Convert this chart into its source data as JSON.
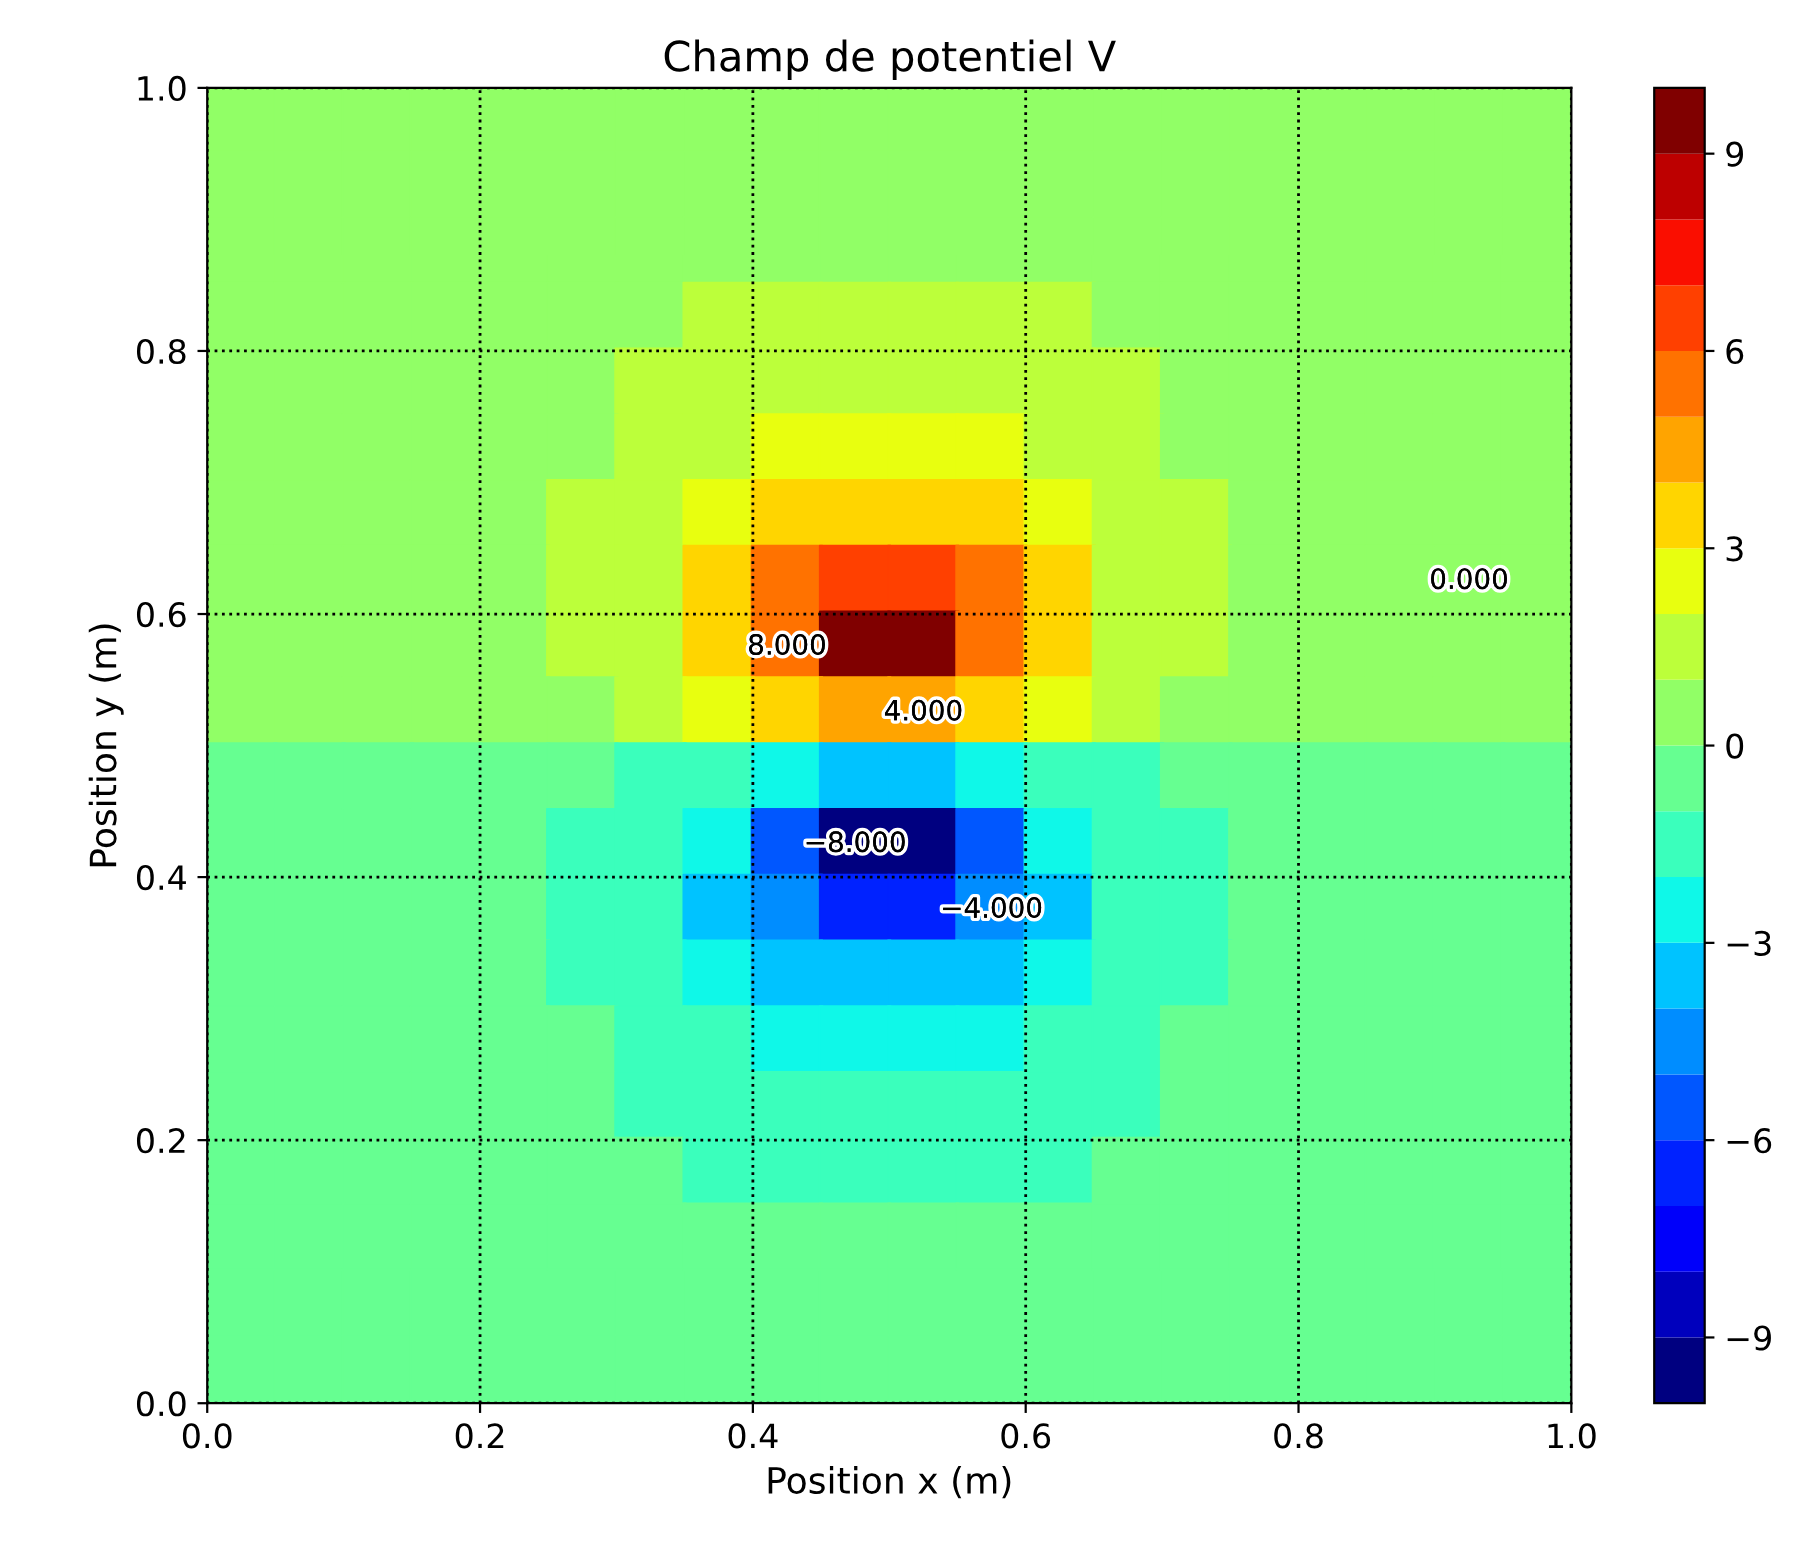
{
  "chart_data": {
    "type": "scatter",
    "marker": "square",
    "title": "Champ de potentiel V",
    "xlabel": "Position x (m)",
    "ylabel": "Position y (m)",
    "x": [
      0.025,
      0.075,
      0.125,
      0.175,
      0.225,
      0.275,
      0.325,
      0.375,
      0.425,
      0.475,
      0.525,
      0.575,
      0.625,
      0.675,
      0.725,
      0.775,
      0.825,
      0.875,
      0.925,
      0.975
    ],
    "xlim": [
      0,
      1
    ],
    "ylim": [
      0,
      1
    ],
    "xticks": [
      {
        "value": 0,
        "label": "0.0"
      },
      {
        "value": 0.2,
        "label": "0.2"
      },
      {
        "value": 0.4,
        "label": "0.4"
      },
      {
        "value": 0.6,
        "label": "0.6"
      },
      {
        "value": 0.8,
        "label": "0.8"
      },
      {
        "value": 1,
        "label": "1.0"
      }
    ],
    "yticks": [
      {
        "value": 0,
        "label": "0.0"
      },
      {
        "value": 0.2,
        "label": "0.2"
      },
      {
        "value": 0.4,
        "label": "0.4"
      },
      {
        "value": 0.6,
        "label": "0.6"
      },
      {
        "value": 0.8,
        "label": "0.8"
      },
      {
        "value": 1,
        "label": "1.0"
      }
    ],
    "clim": [
      -10,
      10
    ],
    "cticks": [
      {
        "value": -9,
        "label": "−9"
      },
      {
        "value": -6,
        "label": "−6"
      },
      {
        "value": -3,
        "label": "−3"
      },
      0,
      3,
      6,
      9
    ],
    "grid": true,
    "series": [
      {
        "colors": [
          "#91ff66",
          "#91ff66",
          "#91ff66",
          "#91ff66",
          "#91ff66",
          "#91ff66",
          "#91ff66",
          "#91ff66",
          "#91ff66",
          "#91ff66",
          "#91ff66",
          "#91ff66",
          "#91ff66",
          "#91ff66",
          "#91ff66",
          "#91ff66",
          "#91ff66",
          "#91ff66",
          "#91ff66",
          "#91ff66"
        ],
        "values": [
          0.975,
          0.975,
          0.975,
          0.975,
          0.975,
          0.975,
          0.975,
          0.975,
          0.975,
          0.975,
          0.975,
          0.975,
          0.975,
          0.975,
          0.975,
          0.975,
          0.975,
          0.975,
          0.975,
          0.975
        ],
        "cvalues": [
          0.5,
          0.5,
          0.5,
          0.5,
          0.5,
          0.5,
          0.5,
          0.5,
          0.5,
          0.5,
          0.5,
          0.5,
          0.5,
          0.5,
          0.5,
          0.5,
          0.5,
          0.5,
          0.5,
          0.5
        ]
      },
      {
        "colors": [
          "#91ff66",
          "#91ff66",
          "#91ff66",
          "#91ff66",
          "#91ff66",
          "#91ff66",
          "#91ff66",
          "#91ff66",
          "#91ff66",
          "#91ff66",
          "#91ff66",
          "#91ff66",
          "#91ff66",
          "#91ff66",
          "#91ff66",
          "#91ff66",
          "#91ff66",
          "#91ff66",
          "#91ff66",
          "#91ff66"
        ],
        "values": [
          0.925,
          0.925,
          0.925,
          0.925,
          0.925,
          0.925,
          0.925,
          0.925,
          0.925,
          0.925,
          0.925,
          0.925,
          0.925,
          0.925,
          0.925,
          0.925,
          0.925,
          0.925,
          0.925,
          0.925
        ],
        "cvalues": [
          0.5,
          0.5,
          0.5,
          0.5,
          0.5,
          0.5,
          0.5,
          0.5,
          0.5,
          0.5,
          0.5,
          0.5,
          0.5,
          0.5,
          0.5,
          0.5,
          0.5,
          0.5,
          0.5,
          0.5
        ]
      },
      {
        "colors": [
          "#91ff66",
          "#91ff66",
          "#91ff66",
          "#91ff66",
          "#91ff66",
          "#91ff66",
          "#91ff66",
          "#91ff66",
          "#91ff66",
          "#91ff66",
          "#91ff66",
          "#91ff66",
          "#91ff66",
          "#91ff66",
          "#91ff66",
          "#91ff66",
          "#91ff66",
          "#91ff66",
          "#91ff66",
          "#91ff66"
        ],
        "values": [
          0.875,
          0.875,
          0.875,
          0.875,
          0.875,
          0.875,
          0.875,
          0.875,
          0.875,
          0.875,
          0.875,
          0.875,
          0.875,
          0.875,
          0.875,
          0.875,
          0.875,
          0.875,
          0.875,
          0.875
        ],
        "cvalues": [
          0.5,
          0.5,
          0.5,
          0.5,
          0.5,
          0.5,
          0.5,
          0.5,
          0.5,
          0.5,
          0.5,
          0.5,
          0.5,
          0.5,
          0.5,
          0.5,
          0.5,
          0.5,
          0.5,
          0.5
        ]
      },
      {
        "colors": [
          "#91ff66",
          "#91ff66",
          "#91ff66",
          "#91ff66",
          "#91ff66",
          "#91ff66",
          "#91ff66",
          "#bcff3a",
          "#bcff3a",
          "#bcff3a",
          "#bcff3a",
          "#bcff3a",
          "#bcff3a",
          "#91ff66",
          "#91ff66",
          "#91ff66",
          "#91ff66",
          "#91ff66",
          "#91ff66",
          "#91ff66"
        ],
        "values": [
          0.825,
          0.825,
          0.825,
          0.825,
          0.825,
          0.825,
          0.825,
          0.825,
          0.825,
          0.825,
          0.825,
          0.825,
          0.825,
          0.825,
          0.825,
          0.825,
          0.825,
          0.825,
          0.825,
          0.825
        ],
        "cvalues": [
          0.5,
          0.5,
          0.5,
          0.5,
          0.5,
          0.5,
          0.5,
          1.05,
          1.2,
          1.3,
          1.3,
          1.2,
          1.05,
          0.5,
          0.5,
          0.5,
          0.5,
          0.5,
          0.5,
          0.5
        ]
      },
      {
        "colors": [
          "#91ff66",
          "#91ff66",
          "#91ff66",
          "#91ff66",
          "#91ff66",
          "#91ff66",
          "#bcff3a",
          "#bcff3a",
          "#bcff3a",
          "#bcff3a",
          "#bcff3a",
          "#bcff3a",
          "#bcff3a",
          "#bcff3a",
          "#91ff66",
          "#91ff66",
          "#91ff66",
          "#91ff66",
          "#91ff66",
          "#91ff66"
        ],
        "values": [
          0.775,
          0.775,
          0.775,
          0.775,
          0.775,
          0.775,
          0.775,
          0.775,
          0.775,
          0.775,
          0.775,
          0.775,
          0.775,
          0.775,
          0.775,
          0.775,
          0.775,
          0.775,
          0.775,
          0.775
        ],
        "cvalues": [
          0.5,
          0.5,
          0.5,
          0.5,
          0.5,
          0.5,
          1.1,
          1.4,
          1.7,
          1.9,
          1.9,
          1.7,
          1.4,
          1.1,
          0.5,
          0.5,
          0.5,
          0.5,
          0.5,
          0.5
        ]
      },
      {
        "colors": [
          "#91ff66",
          "#91ff66",
          "#91ff66",
          "#91ff66",
          "#91ff66",
          "#91ff66",
          "#bcff3a",
          "#bcff3a",
          "#e8ff0f",
          "#e8ff0f",
          "#e8ff0f",
          "#e8ff0f",
          "#bcff3a",
          "#bcff3a",
          "#91ff66",
          "#91ff66",
          "#91ff66",
          "#91ff66",
          "#91ff66",
          "#91ff66"
        ],
        "values": [
          0.725,
          0.725,
          0.725,
          0.725,
          0.725,
          0.725,
          0.725,
          0.725,
          0.725,
          0.725,
          0.725,
          0.725,
          0.725,
          0.725,
          0.725,
          0.725,
          0.725,
          0.725,
          0.725,
          0.725
        ],
        "cvalues": [
          0.5,
          0.5,
          0.5,
          0.5,
          0.5,
          0.8,
          1.3,
          1.9,
          2.4,
          2.7,
          2.7,
          2.4,
          1.9,
          1.3,
          0.8,
          0.5,
          0.5,
          0.5,
          0.5,
          0.5
        ]
      },
      {
        "colors": [
          "#91ff66",
          "#91ff66",
          "#91ff66",
          "#91ff66",
          "#91ff66",
          "#bcff3a",
          "#bcff3a",
          "#e8ff0f",
          "#ffd500",
          "#ffd500",
          "#ffd500",
          "#ffd500",
          "#e8ff0f",
          "#bcff3a",
          "#bcff3a",
          "#91ff66",
          "#91ff66",
          "#91ff66",
          "#91ff66",
          "#91ff66"
        ],
        "values": [
          0.675,
          0.675,
          0.675,
          0.675,
          0.675,
          0.675,
          0.675,
          0.675,
          0.675,
          0.675,
          0.675,
          0.675,
          0.675,
          0.675,
          0.675,
          0.675,
          0.675,
          0.675,
          0.675,
          0.675
        ],
        "cvalues": [
          0.5,
          0.5,
          0.5,
          0.5,
          0.8,
          1.1,
          1.6,
          2.5,
          3.3,
          3.8,
          3.8,
          3.3,
          2.5,
          1.6,
          1.1,
          0.8,
          0.5,
          0.5,
          0.5,
          0.5
        ]
      },
      {
        "colors": [
          "#91ff66",
          "#91ff66",
          "#91ff66",
          "#91ff66",
          "#91ff66",
          "#bcff3a",
          "#bcff3a",
          "#ffd500",
          "#ff7200",
          "#ff4000",
          "#ff4000",
          "#ff7200",
          "#ffd500",
          "#bcff3a",
          "#bcff3a",
          "#91ff66",
          "#91ff66",
          "#91ff66",
          "#91ff66",
          "#91ff66"
        ],
        "values": [
          0.625,
          0.625,
          0.625,
          0.625,
          0.625,
          0.625,
          0.625,
          0.625,
          0.625,
          0.625,
          0.625,
          0.625,
          0.625,
          0.625,
          0.625,
          0.625,
          0.625,
          0.625,
          0.625,
          0.625
        ],
        "cvalues": [
          0.5,
          0.5,
          0.5,
          0.5,
          0.8,
          1.2,
          1.8,
          3.2,
          5,
          6.5,
          6.5,
          5,
          3.2,
          1.8,
          1.2,
          0.8,
          0.5,
          0.5,
          0.5,
          0.5
        ]
      },
      {
        "colors": [
          "#91ff66",
          "#91ff66",
          "#91ff66",
          "#91ff66",
          "#91ff66",
          "#bcff3a",
          "#bcff3a",
          "#ffd500",
          "#ff7200",
          "#800000",
          "#800000",
          "#ff7200",
          "#ffd500",
          "#bcff3a",
          "#bcff3a",
          "#91ff66",
          "#91ff66",
          "#91ff66",
          "#91ff66",
          "#91ff66"
        ],
        "values": [
          0.575,
          0.575,
          0.575,
          0.575,
          0.575,
          0.575,
          0.575,
          0.575,
          0.575,
          0.575,
          0.575,
          0.575,
          0.575,
          0.575,
          0.575,
          0.575,
          0.575,
          0.575,
          0.575,
          0.575
        ],
        "cvalues": [
          0.5,
          0.5,
          0.5,
          0.5,
          0.8,
          1.1,
          1.8,
          3,
          5.5,
          9.5,
          9.5,
          5.5,
          3,
          1.8,
          1.1,
          0.8,
          0.5,
          0.5,
          0.5,
          0.5
        ]
      },
      {
        "colors": [
          "#91ff66",
          "#91ff66",
          "#91ff66",
          "#91ff66",
          "#91ff66",
          "#91ff66",
          "#bcff3a",
          "#e8ff0f",
          "#ffd500",
          "#ffa400",
          "#ffa400",
          "#ffd500",
          "#e8ff0f",
          "#bcff3a",
          "#91ff66",
          "#91ff66",
          "#91ff66",
          "#91ff66",
          "#91ff66",
          "#91ff66"
        ],
        "values": [
          0.525,
          0.525,
          0.525,
          0.525,
          0.525,
          0.525,
          0.525,
          0.525,
          0.525,
          0.525,
          0.525,
          0.525,
          0.525,
          0.525,
          0.525,
          0.525,
          0.525,
          0.525,
          0.525,
          0.525
        ],
        "cvalues": [
          0.5,
          0.5,
          0.5,
          0.5,
          0.5,
          0.8,
          1.2,
          2,
          3,
          4,
          4,
          3,
          2,
          1.2,
          0.8,
          0.5,
          0.5,
          0.5,
          0.5,
          0.5
        ]
      },
      {
        "colors": [
          "#66ff91",
          "#66ff91",
          "#66ff91",
          "#66ff91",
          "#66ff91",
          "#66ff91",
          "#3affbc",
          "#3affbc",
          "#0ff8e8",
          "#00c3ff",
          "#00c3ff",
          "#0ff8e8",
          "#3affbc",
          "#3affbc",
          "#66ff91",
          "#66ff91",
          "#66ff91",
          "#66ff91",
          "#66ff91",
          "#66ff91"
        ],
        "values": [
          0.475,
          0.475,
          0.475,
          0.475,
          0.475,
          0.475,
          0.475,
          0.475,
          0.475,
          0.475,
          0.475,
          0.475,
          0.475,
          0.475,
          0.475,
          0.475,
          0.475,
          0.475,
          0.475,
          0.475
        ],
        "cvalues": [
          -0.5,
          -0.5,
          -0.5,
          -0.5,
          -0.5,
          -0.8,
          -1.2,
          -2,
          -3,
          -4,
          -4,
          -3,
          -2,
          -1.2,
          -0.8,
          -0.5,
          -0.5,
          -0.5,
          -0.5,
          -0.5
        ]
      },
      {
        "colors": [
          "#66ff91",
          "#66ff91",
          "#66ff91",
          "#66ff91",
          "#66ff91",
          "#3affbc",
          "#3affbc",
          "#0ff8e8",
          "#0057ff",
          "#000080",
          "#000080",
          "#0057ff",
          "#0ff8e8",
          "#3affbc",
          "#3affbc",
          "#66ff91",
          "#66ff91",
          "#66ff91",
          "#66ff91",
          "#66ff91"
        ],
        "values": [
          0.425,
          0.425,
          0.425,
          0.425,
          0.425,
          0.425,
          0.425,
          0.425,
          0.425,
          0.425,
          0.425,
          0.425,
          0.425,
          0.425,
          0.425,
          0.425,
          0.425,
          0.425,
          0.425,
          0.425
        ],
        "cvalues": [
          -0.5,
          -0.5,
          -0.5,
          -0.5,
          -0.8,
          -1.1,
          -1.8,
          -3,
          -5.5,
          -9.5,
          -9.5,
          -5.5,
          -3,
          -1.8,
          -1.1,
          -0.8,
          -0.5,
          -0.5,
          -0.5,
          -0.5
        ]
      },
      {
        "colors": [
          "#66ff91",
          "#66ff91",
          "#66ff91",
          "#66ff91",
          "#66ff91",
          "#3affbc",
          "#3affbc",
          "#00c3ff",
          "#008dff",
          "#0022ff",
          "#0022ff",
          "#008dff",
          "#00c3ff",
          "#3affbc",
          "#3affbc",
          "#66ff91",
          "#66ff91",
          "#66ff91",
          "#66ff91",
          "#66ff91"
        ],
        "values": [
          0.375,
          0.375,
          0.375,
          0.375,
          0.375,
          0.375,
          0.375,
          0.375,
          0.375,
          0.375,
          0.375,
          0.375,
          0.375,
          0.375,
          0.375,
          0.375,
          0.375,
          0.375,
          0.375,
          0.375
        ],
        "cvalues": [
          -0.5,
          -0.5,
          -0.5,
          -0.5,
          -0.8,
          -1.2,
          -1.8,
          -3.2,
          -5,
          -6.5,
          -6.5,
          -5,
          -3.2,
          -1.8,
          -1.2,
          -0.8,
          -0.5,
          -0.5,
          -0.5,
          -0.5
        ]
      },
      {
        "colors": [
          "#66ff91",
          "#66ff91",
          "#66ff91",
          "#66ff91",
          "#66ff91",
          "#3affbc",
          "#3affbc",
          "#0ff8e8",
          "#00c3ff",
          "#00c3ff",
          "#00c3ff",
          "#00c3ff",
          "#0ff8e8",
          "#3affbc",
          "#3affbc",
          "#66ff91",
          "#66ff91",
          "#66ff91",
          "#66ff91",
          "#66ff91"
        ],
        "values": [
          0.325,
          0.325,
          0.325,
          0.325,
          0.325,
          0.325,
          0.325,
          0.325,
          0.325,
          0.325,
          0.325,
          0.325,
          0.325,
          0.325,
          0.325,
          0.325,
          0.325,
          0.325,
          0.325,
          0.325
        ],
        "cvalues": [
          -0.5,
          -0.5,
          -0.5,
          -0.5,
          -0.8,
          -1.1,
          -1.6,
          -2.5,
          -3.3,
          -3.8,
          -3.8,
          -3.3,
          -2.5,
          -1.6,
          -1.1,
          -0.8,
          -0.5,
          -0.5,
          -0.5,
          -0.5
        ]
      },
      {
        "colors": [
          "#66ff91",
          "#66ff91",
          "#66ff91",
          "#66ff91",
          "#66ff91",
          "#66ff91",
          "#3affbc",
          "#3affbc",
          "#0ff8e8",
          "#0ff8e8",
          "#0ff8e8",
          "#0ff8e8",
          "#3affbc",
          "#3affbc",
          "#66ff91",
          "#66ff91",
          "#66ff91",
          "#66ff91",
          "#66ff91",
          "#66ff91"
        ],
        "values": [
          0.275,
          0.275,
          0.275,
          0.275,
          0.275,
          0.275,
          0.275,
          0.275,
          0.275,
          0.275,
          0.275,
          0.275,
          0.275,
          0.275,
          0.275,
          0.275,
          0.275,
          0.275,
          0.275,
          0.275
        ],
        "cvalues": [
          -0.5,
          -0.5,
          -0.5,
          -0.5,
          -0.5,
          -0.8,
          -1.3,
          -1.9,
          -2.4,
          -2.7,
          -2.7,
          -2.4,
          -1.9,
          -1.3,
          -0.8,
          -0.5,
          -0.5,
          -0.5,
          -0.5,
          -0.5
        ]
      },
      {
        "colors": [
          "#66ff91",
          "#66ff91",
          "#66ff91",
          "#66ff91",
          "#66ff91",
          "#66ff91",
          "#3affbc",
          "#3affbc",
          "#3affbc",
          "#3affbc",
          "#3affbc",
          "#3affbc",
          "#3affbc",
          "#3affbc",
          "#66ff91",
          "#66ff91",
          "#66ff91",
          "#66ff91",
          "#66ff91",
          "#66ff91"
        ],
        "values": [
          0.225,
          0.225,
          0.225,
          0.225,
          0.225,
          0.225,
          0.225,
          0.225,
          0.225,
          0.225,
          0.225,
          0.225,
          0.225,
          0.225,
          0.225,
          0.225,
          0.225,
          0.225,
          0.225,
          0.225
        ],
        "cvalues": [
          -0.5,
          -0.5,
          -0.5,
          -0.5,
          -0.5,
          -0.5,
          -1.1,
          -1.4,
          -1.7,
          -1.9,
          -1.9,
          -1.7,
          -1.4,
          -1.1,
          -0.5,
          -0.5,
          -0.5,
          -0.5,
          -0.5,
          -0.5
        ]
      },
      {
        "colors": [
          "#66ff91",
          "#66ff91",
          "#66ff91",
          "#66ff91",
          "#66ff91",
          "#66ff91",
          "#66ff91",
          "#3affbc",
          "#3affbc",
          "#3affbc",
          "#3affbc",
          "#3affbc",
          "#3affbc",
          "#66ff91",
          "#66ff91",
          "#66ff91",
          "#66ff91",
          "#66ff91",
          "#66ff91",
          "#66ff91"
        ],
        "values": [
          0.175,
          0.175,
          0.175,
          0.175,
          0.175,
          0.175,
          0.175,
          0.175,
          0.175,
          0.175,
          0.175,
          0.175,
          0.175,
          0.175,
          0.175,
          0.175,
          0.175,
          0.175,
          0.175,
          0.175
        ],
        "cvalues": [
          -0.5,
          -0.5,
          -0.5,
          -0.5,
          -0.5,
          -0.5,
          -0.5,
          -1.05,
          -1.2,
          -1.3,
          -1.3,
          -1.2,
          -1.05,
          -0.5,
          -0.5,
          -0.5,
          -0.5,
          -0.5,
          -0.5,
          -0.5
        ]
      },
      {
        "colors": [
          "#66ff91",
          "#66ff91",
          "#66ff91",
          "#66ff91",
          "#66ff91",
          "#66ff91",
          "#66ff91",
          "#66ff91",
          "#66ff91",
          "#66ff91",
          "#66ff91",
          "#66ff91",
          "#66ff91",
          "#66ff91",
          "#66ff91",
          "#66ff91",
          "#66ff91",
          "#66ff91",
          "#66ff91",
          "#66ff91"
        ],
        "values": [
          0.125,
          0.125,
          0.125,
          0.125,
          0.125,
          0.125,
          0.125,
          0.125,
          0.125,
          0.125,
          0.125,
          0.125,
          0.125,
          0.125,
          0.125,
          0.125,
          0.125,
          0.125,
          0.125,
          0.125
        ],
        "cvalues": [
          -0.5,
          -0.5,
          -0.5,
          -0.5,
          -0.5,
          -0.5,
          -0.5,
          -0.5,
          -0.5,
          -0.5,
          -0.5,
          -0.5,
          -0.5,
          -0.5,
          -0.5,
          -0.5,
          -0.5,
          -0.5,
          -0.5,
          -0.5
        ]
      },
      {
        "colors": [
          "#66ff91",
          "#66ff91",
          "#66ff91",
          "#66ff91",
          "#66ff91",
          "#66ff91",
          "#66ff91",
          "#66ff91",
          "#66ff91",
          "#66ff91",
          "#66ff91",
          "#66ff91",
          "#66ff91",
          "#66ff91",
          "#66ff91",
          "#66ff91",
          "#66ff91",
          "#66ff91",
          "#66ff91",
          "#66ff91"
        ],
        "values": [
          0.075,
          0.075,
          0.075,
          0.075,
          0.075,
          0.075,
          0.075,
          0.075,
          0.075,
          0.075,
          0.075,
          0.075,
          0.075,
          0.075,
          0.075,
          0.075,
          0.075,
          0.075,
          0.075,
          0.075
        ],
        "cvalues": [
          -0.5,
          -0.5,
          -0.5,
          -0.5,
          -0.5,
          -0.5,
          -0.5,
          -0.5,
          -0.5,
          -0.5,
          -0.5,
          -0.5,
          -0.5,
          -0.5,
          -0.5,
          -0.5,
          -0.5,
          -0.5,
          -0.5,
          -0.5
        ]
      },
      {
        "colors": [
          "#66ff91",
          "#66ff91",
          "#66ff91",
          "#66ff91",
          "#66ff91",
          "#66ff91",
          "#66ff91",
          "#66ff91",
          "#66ff91",
          "#66ff91",
          "#66ff91",
          "#66ff91",
          "#66ff91",
          "#66ff91",
          "#66ff91",
          "#66ff91",
          "#66ff91",
          "#66ff91",
          "#66ff91",
          "#66ff91"
        ],
        "values": [
          0.025,
          0.025,
          0.025,
          0.025,
          0.025,
          0.025,
          0.025,
          0.025,
          0.025,
          0.025,
          0.025,
          0.025,
          0.025,
          0.025,
          0.025,
          0.025,
          0.025,
          0.025,
          0.025,
          0.025
        ],
        "cvalues": [
          -0.5,
          -0.5,
          -0.5,
          -0.5,
          -0.5,
          -0.5,
          -0.5,
          -0.5,
          -0.5,
          -0.5,
          -0.5,
          -0.5,
          -0.5,
          -0.5,
          -0.5,
          -0.5,
          -0.5,
          -0.5,
          -0.5,
          -0.5
        ]
      }
    ],
    "annotations": [
      {
        "text": "8.000",
        "x": 0.425,
        "y": 0.575
      },
      {
        "text": "4.000",
        "x": 0.525,
        "y": 0.525
      },
      {
        "text": "−8.000",
        "x": 0.475,
        "y": 0.425
      },
      {
        "text": "−4.000",
        "x": 0.575,
        "y": 0.375
      },
      {
        "text": "0.000",
        "x": 0.925,
        "y": 0.625
      }
    ]
  }
}
